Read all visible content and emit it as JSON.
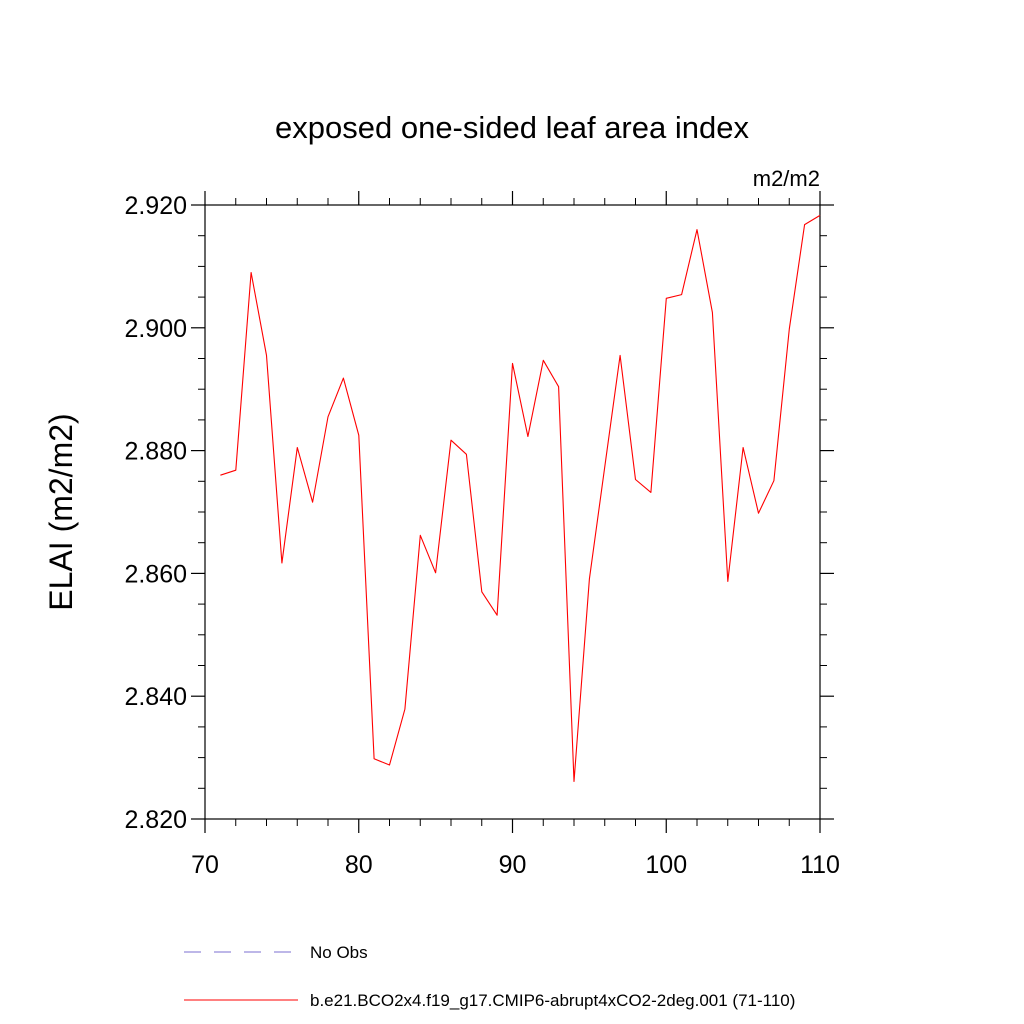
{
  "chart_data": {
    "type": "line",
    "title": "exposed one-sided leaf area index",
    "units": "m2/m2",
    "ylabel": "ELAI  (m2/m2)",
    "xlabel": "",
    "xlim": [
      70,
      110
    ],
    "ylim": [
      2.82,
      2.92
    ],
    "x_ticks": [
      70,
      80,
      90,
      100,
      110
    ],
    "x_tick_labels": [
      "70",
      "80",
      "90",
      "100",
      "110"
    ],
    "y_ticks": [
      2.82,
      2.84,
      2.86,
      2.88,
      2.9,
      2.92
    ],
    "y_tick_labels": [
      "2.820",
      "2.840",
      "2.860",
      "2.880",
      "2.900",
      "2.920"
    ],
    "grid": false,
    "legend_position": "bottom",
    "legend": [
      {
        "label": "No Obs",
        "style": "dashed",
        "color": "#7b6fd0"
      },
      {
        "label": "b.e21.BCO2x4.f19_g17.CMIP6-abrupt4xCO2-2deg.001 (71-110)",
        "style": "solid",
        "color": "#ff0000"
      }
    ],
    "series": [
      {
        "name": "b.e21.BCO2x4.f19_g17.CMIP6-abrupt4xCO2-2deg.001 (71-110)",
        "color": "#ff0000",
        "x": [
          71,
          72,
          73,
          74,
          75,
          76,
          77,
          78,
          79,
          80,
          81,
          82,
          83,
          84,
          85,
          86,
          87,
          88,
          89,
          90,
          91,
          92,
          93,
          94,
          95,
          96,
          97,
          98,
          99,
          100,
          101,
          102,
          103,
          104,
          105,
          106,
          107,
          108,
          109,
          110
        ],
        "values": [
          2.876,
          2.8768,
          2.909,
          2.8955,
          2.8617,
          2.8805,
          2.8716,
          2.8855,
          2.8918,
          2.8825,
          2.8298,
          2.8288,
          2.8379,
          2.8662,
          2.8601,
          2.8817,
          2.8794,
          2.857,
          2.8532,
          2.8942,
          2.8823,
          2.8947,
          2.8904,
          2.8261,
          2.8591,
          2.8774,
          2.8955,
          2.8753,
          2.8732,
          2.9048,
          2.9054,
          2.916,
          2.9025,
          2.8587,
          2.8805,
          2.8698,
          2.8751,
          2.8998,
          2.9168,
          2.9183
        ]
      }
    ]
  }
}
